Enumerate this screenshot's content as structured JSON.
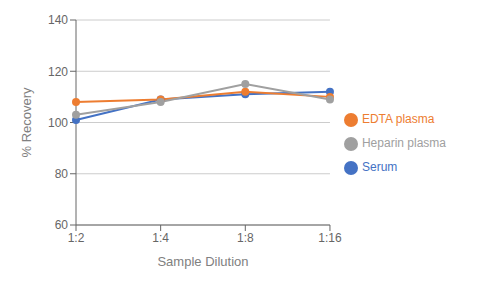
{
  "chart_data": {
    "type": "line",
    "xlabel": "Sample Dilution",
    "ylabel": "% Recovery",
    "categories": [
      "1:2",
      "1:4",
      "1:8",
      "1:16"
    ],
    "series": [
      {
        "name": "Serum",
        "color": "#4472C4",
        "marker": "circle",
        "values": [
          101,
          109,
          111,
          112
        ]
      },
      {
        "name": "EDTA plasma",
        "color": "#ED7D31",
        "marker": "circle",
        "values": [
          108,
          109,
          112,
          110
        ]
      },
      {
        "name": "Heparin plasma",
        "color": "#A0A0A0",
        "marker": "circle",
        "values": [
          103,
          108,
          115,
          109
        ]
      }
    ],
    "ylim": [
      60,
      140
    ],
    "yticks": [
      60,
      80,
      100,
      120,
      140
    ],
    "grid": true,
    "legend": "right"
  }
}
